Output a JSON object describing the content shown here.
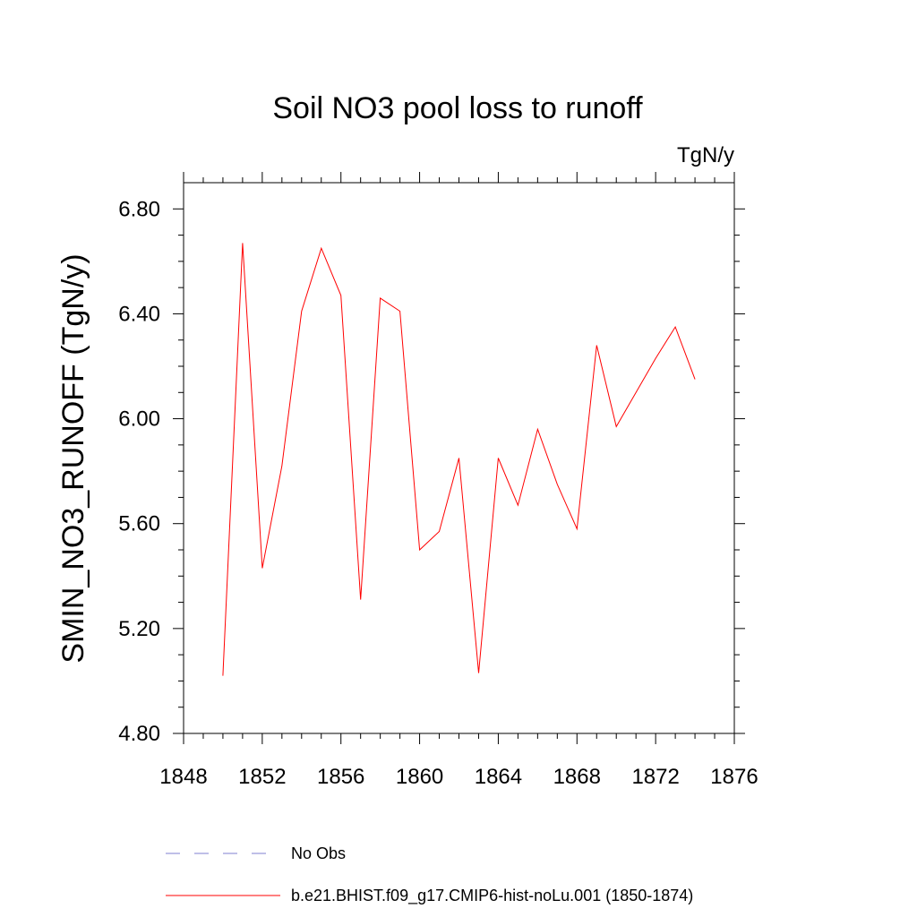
{
  "chart_data": {
    "type": "line",
    "title": "Soil NO3 pool loss to runoff",
    "units_label": "TgN/y",
    "ylabel": "SMIN_NO3_RUNOFF  (TgN/y)",
    "xlabel": "",
    "xlim": [
      1848,
      1876
    ],
    "ylim": [
      4.8,
      6.9
    ],
    "x_ticks": [
      1848,
      1852,
      1856,
      1860,
      1864,
      1868,
      1872,
      1876
    ],
    "x_tick_labels": [
      "1848",
      "1852",
      "1856",
      "1860",
      "1864",
      "1868",
      "1872",
      "1876"
    ],
    "y_ticks": [
      4.8,
      5.2,
      5.6,
      6.0,
      6.4,
      6.8
    ],
    "y_tick_labels": [
      "4.80",
      "5.20",
      "5.60",
      "6.00",
      "6.40",
      "6.80"
    ],
    "grid": false,
    "legend_position": "bottom",
    "series": [
      {
        "name": "No Obs",
        "color": "#7f7fd0",
        "style": "dashed",
        "x": [],
        "y": []
      },
      {
        "name": "b.e21.BHIST.f09_g17.CMIP6-hist-noLu.001 (1850-1874)",
        "color": "#ff0000",
        "style": "solid",
        "x": [
          1850,
          1851,
          1852,
          1853,
          1854,
          1855,
          1856,
          1857,
          1858,
          1859,
          1860,
          1861,
          1862,
          1863,
          1864,
          1865,
          1866,
          1867,
          1868,
          1869,
          1870,
          1871,
          1872,
          1873,
          1874
        ],
        "y": [
          5.02,
          6.67,
          5.43,
          5.82,
          6.41,
          6.65,
          6.47,
          5.31,
          6.46,
          6.41,
          5.5,
          5.57,
          5.85,
          5.03,
          5.85,
          5.67,
          5.96,
          5.75,
          5.58,
          6.28,
          5.97,
          6.1,
          6.23,
          6.35,
          6.15
        ]
      }
    ]
  }
}
